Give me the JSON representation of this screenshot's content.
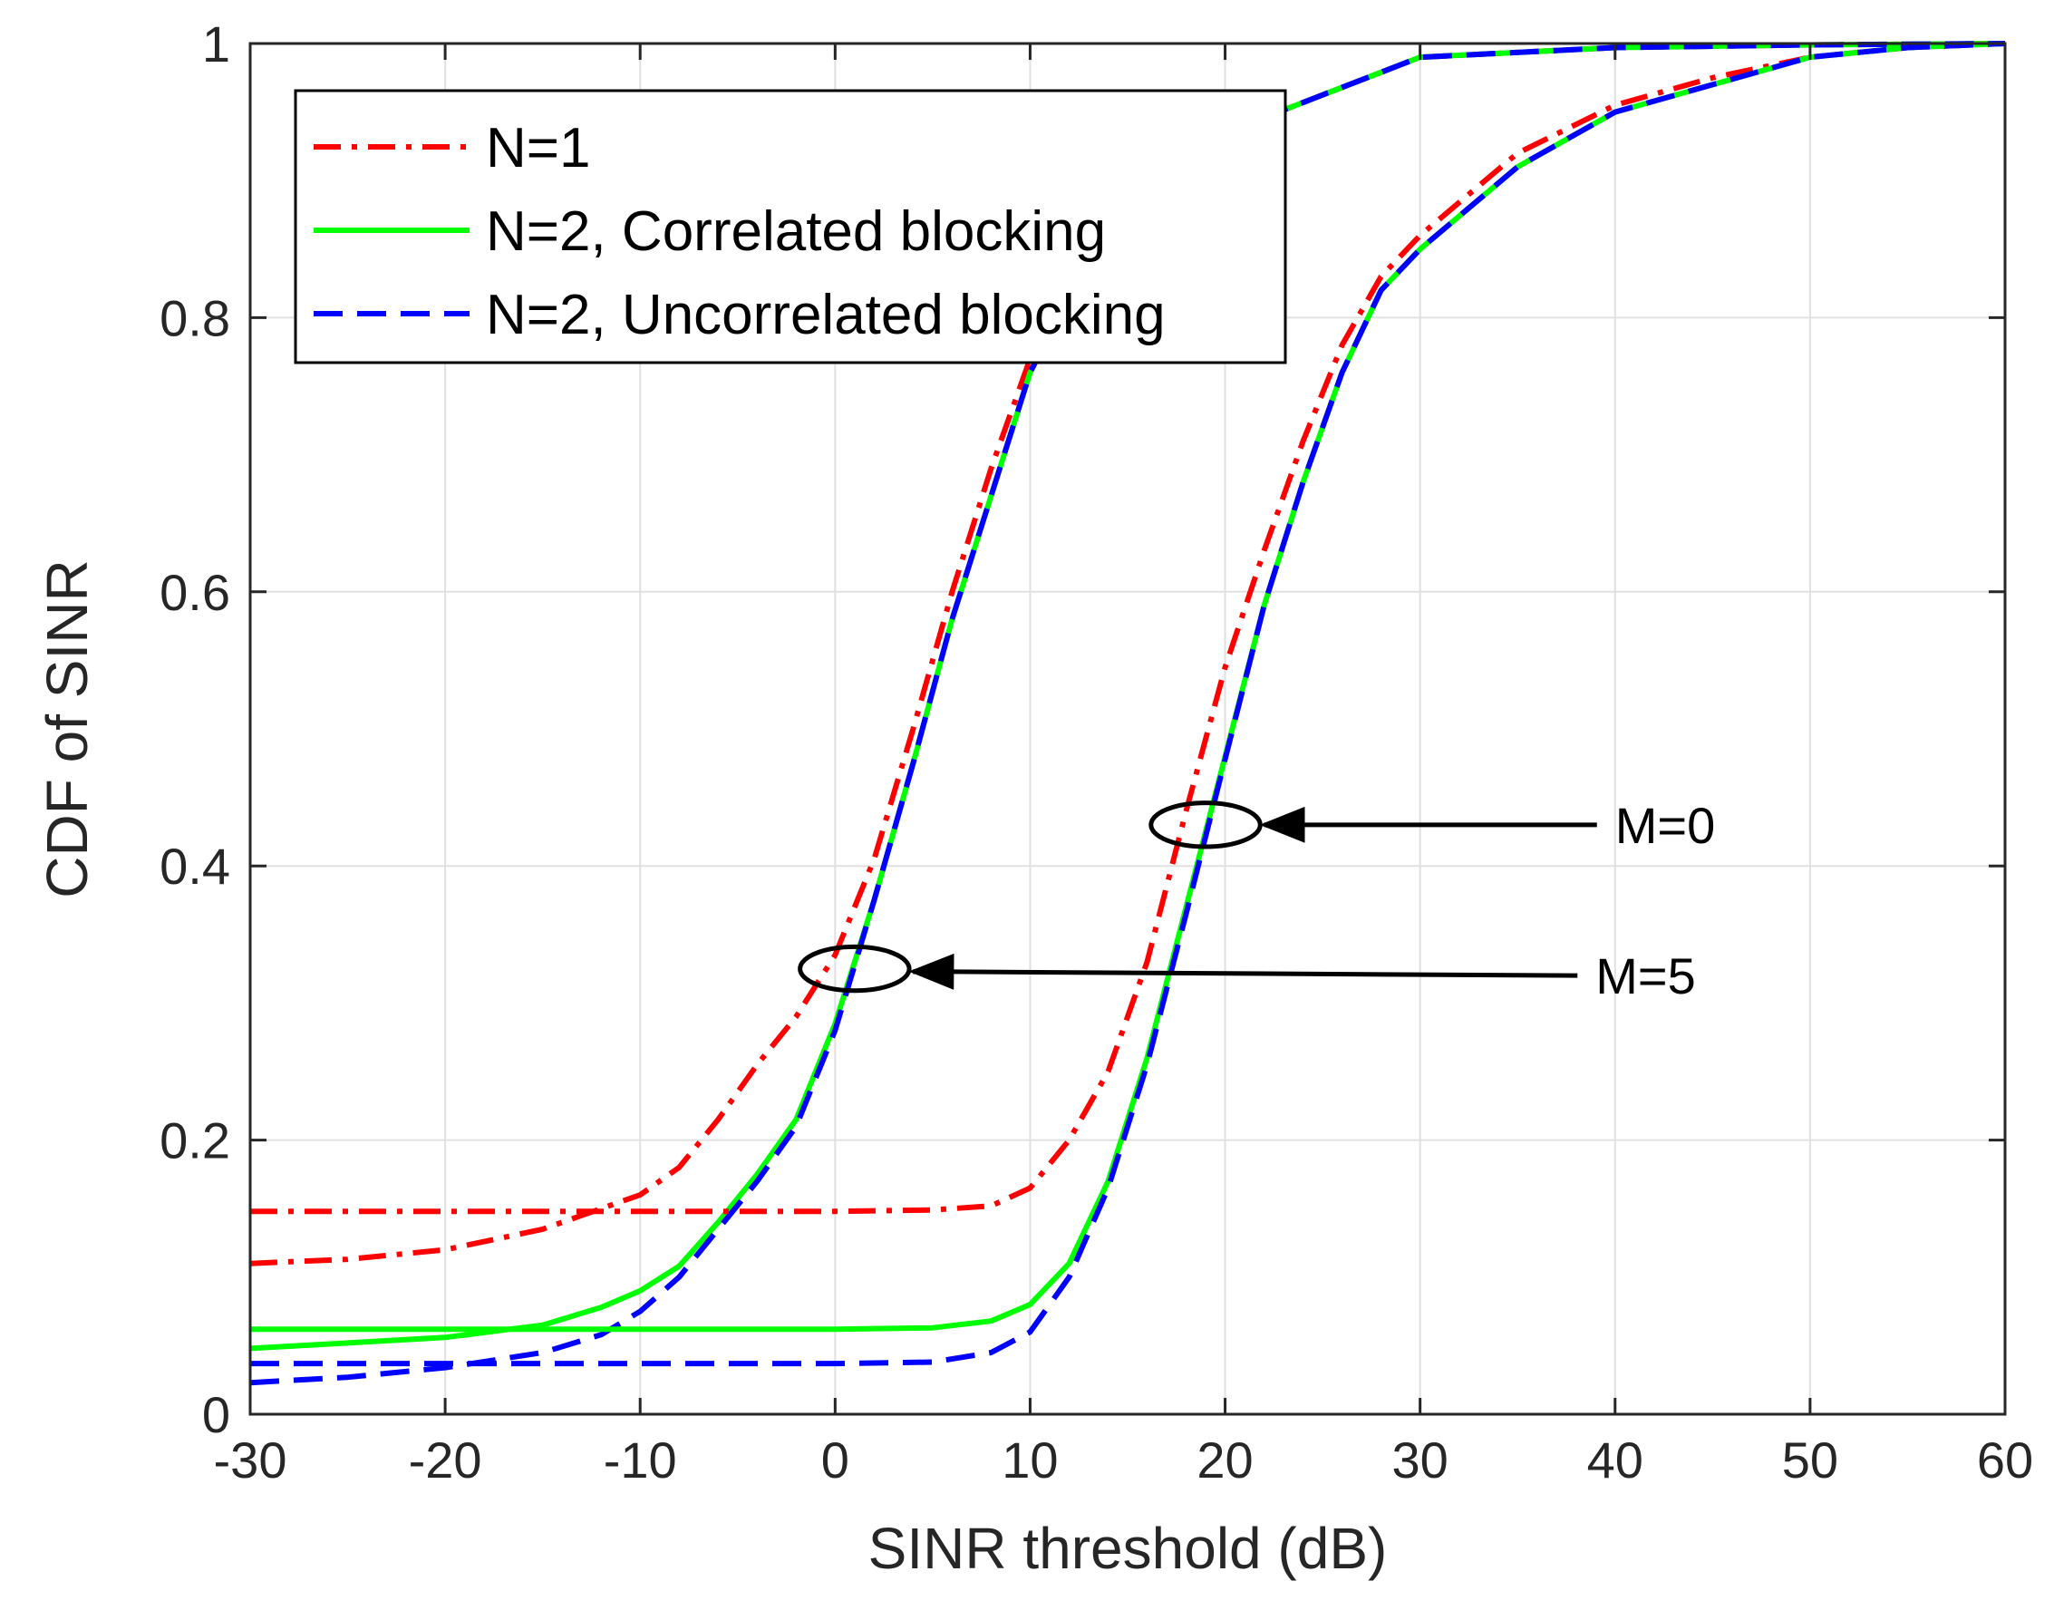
{
  "chart_data": {
    "type": "line",
    "title": "",
    "xlabel": "SINR threshold (dB)",
    "ylabel": "CDF of SINR",
    "xlim": [
      -30,
      60
    ],
    "ylim": [
      0,
      1
    ],
    "grid": true,
    "legend_position": "top-left",
    "xticks": [
      -30,
      -20,
      -10,
      0,
      10,
      20,
      30,
      40,
      50,
      60
    ],
    "xtick_labels": [
      "-30",
      "-20",
      "-10",
      "0",
      "10",
      "20",
      "30",
      "40",
      "50",
      "60"
    ],
    "yticks": [
      0,
      0.2,
      0.4,
      0.6,
      0.8,
      1
    ],
    "ytick_labels": [
      "0",
      "0.2",
      "0.4",
      "0.6",
      "0.8",
      "1"
    ],
    "colors": {
      "red": "#ff0000",
      "green": "#00ff00",
      "blue": "#0000ff",
      "axis": "#262626",
      "grid": "#e0e0e0"
    },
    "legend": [
      {
        "label": "N=1",
        "color": "#ff0000",
        "style": "dashdot"
      },
      {
        "label": "N=2, Correlated blocking",
        "color": "#00ff00",
        "style": "solid"
      },
      {
        "label": "N=2, Uncorrelated blocking",
        "color": "#0000ff",
        "style": "dashed"
      }
    ],
    "series": [
      {
        "name": "N=1",
        "group": "M=5",
        "color": "#ff0000",
        "style": "dashdot",
        "x": [
          -30,
          -25,
          -20,
          -15,
          -12,
          -10,
          -8,
          -6,
          -4,
          -2,
          0,
          2,
          4,
          6,
          8,
          10,
          12,
          14,
          20,
          30,
          40,
          50,
          60
        ],
        "y": [
          0.11,
          0.113,
          0.12,
          0.135,
          0.15,
          0.16,
          0.18,
          0.215,
          0.255,
          0.29,
          0.335,
          0.405,
          0.5,
          0.6,
          0.69,
          0.77,
          0.82,
          0.86,
          0.935,
          0.99,
          0.997,
          0.999,
          1.0
        ]
      },
      {
        "name": "N=2, Correlated blocking",
        "group": "M=5",
        "color": "#00ff00",
        "style": "solid",
        "x": [
          -30,
          -25,
          -20,
          -15,
          -12,
          -10,
          -8,
          -6,
          -4,
          -2,
          0,
          2,
          4,
          6,
          8,
          10,
          12,
          14,
          20,
          30,
          40,
          50,
          60
        ],
        "y": [
          0.048,
          0.052,
          0.056,
          0.065,
          0.078,
          0.09,
          0.108,
          0.14,
          0.175,
          0.215,
          0.285,
          0.375,
          0.475,
          0.58,
          0.67,
          0.76,
          0.815,
          0.855,
          0.935,
          0.99,
          0.997,
          0.999,
          1.0
        ]
      },
      {
        "name": "N=2, Uncorrelated blocking",
        "group": "M=5",
        "color": "#0000ff",
        "style": "dashed",
        "x": [
          -30,
          -25,
          -20,
          -15,
          -12,
          -10,
          -8,
          -6,
          -4,
          -2,
          0,
          2,
          4,
          6,
          8,
          10,
          12,
          14,
          20,
          30,
          40,
          50,
          60
        ],
        "y": [
          0.023,
          0.027,
          0.034,
          0.045,
          0.058,
          0.075,
          0.1,
          0.135,
          0.17,
          0.21,
          0.28,
          0.375,
          0.475,
          0.58,
          0.67,
          0.76,
          0.815,
          0.855,
          0.935,
          0.99,
          0.997,
          0.999,
          1.0
        ]
      },
      {
        "name": "N=1",
        "group": "M=0",
        "color": "#ff0000",
        "style": "dashdot",
        "x": [
          -30,
          -10,
          0,
          5,
          8,
          10,
          12,
          14,
          16,
          18,
          20,
          22,
          24,
          26,
          28,
          30,
          35,
          40,
          45,
          50,
          55,
          60
        ],
        "y": [
          0.148,
          0.148,
          0.148,
          0.149,
          0.152,
          0.165,
          0.2,
          0.25,
          0.33,
          0.44,
          0.545,
          0.63,
          0.71,
          0.78,
          0.83,
          0.86,
          0.92,
          0.955,
          0.975,
          0.99,
          0.997,
          1.0
        ]
      },
      {
        "name": "N=2, Correlated blocking",
        "group": "M=0",
        "color": "#00ff00",
        "style": "solid",
        "x": [
          -30,
          -10,
          0,
          5,
          8,
          10,
          12,
          14,
          16,
          18,
          20,
          22,
          24,
          26,
          28,
          30,
          35,
          40,
          45,
          50,
          55,
          60
        ],
        "y": [
          0.062,
          0.062,
          0.062,
          0.063,
          0.068,
          0.08,
          0.11,
          0.17,
          0.26,
          0.37,
          0.48,
          0.59,
          0.68,
          0.76,
          0.82,
          0.85,
          0.91,
          0.95,
          0.97,
          0.99,
          0.997,
          1.0
        ]
      },
      {
        "name": "N=2, Uncorrelated blocking",
        "group": "M=0",
        "color": "#0000ff",
        "style": "dashed",
        "x": [
          -30,
          -10,
          0,
          5,
          8,
          10,
          12,
          14,
          16,
          18,
          20,
          22,
          24,
          26,
          28,
          30,
          35,
          40,
          45,
          50,
          55,
          60
        ],
        "y": [
          0.037,
          0.037,
          0.037,
          0.038,
          0.045,
          0.06,
          0.1,
          0.165,
          0.255,
          0.365,
          0.478,
          0.59,
          0.68,
          0.76,
          0.82,
          0.85,
          0.91,
          0.95,
          0.97,
          0.99,
          0.997,
          1.0
        ]
      }
    ],
    "annotations": [
      {
        "text": "M=0",
        "ellipse_center": [
          19,
          0.43
        ],
        "ellipse_rx": 2.8,
        "ellipse_ry": 0.016,
        "arrow_tip": [
          22,
          0.43
        ],
        "label_anchor": [
          40,
          0.43
        ]
      },
      {
        "text": "M=5",
        "ellipse_center": [
          1,
          0.325
        ],
        "ellipse_rx": 2.8,
        "ellipse_ry": 0.016,
        "arrow_tip": [
          4,
          0.323
        ],
        "label_anchor": [
          39,
          0.32
        ]
      }
    ]
  }
}
